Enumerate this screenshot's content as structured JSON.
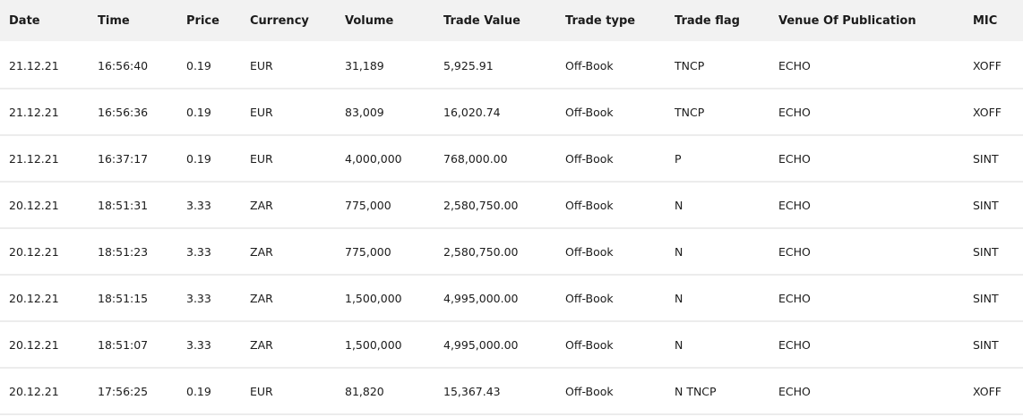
{
  "table": {
    "headers": {
      "date": "Date",
      "time": "Time",
      "price": "Price",
      "currency": "Currency",
      "volume": "Volume",
      "trade_value": "Trade Value",
      "trade_type": "Trade type",
      "trade_flag": "Trade flag",
      "venue": "Venue Of Publication",
      "mic": "MIC"
    },
    "rows": [
      {
        "date": "21.12.21",
        "time": "16:56:40",
        "price": "0.19",
        "currency": "EUR",
        "volume": "31,189",
        "trade_value": "5,925.91",
        "trade_type": "Off-Book",
        "trade_flag": "TNCP",
        "venue": "ECHO",
        "mic": "XOFF"
      },
      {
        "date": "21.12.21",
        "time": "16:56:36",
        "price": "0.19",
        "currency": "EUR",
        "volume": "83,009",
        "trade_value": "16,020.74",
        "trade_type": "Off-Book",
        "trade_flag": "TNCP",
        "venue": "ECHO",
        "mic": "XOFF"
      },
      {
        "date": "21.12.21",
        "time": "16:37:17",
        "price": "0.19",
        "currency": "EUR",
        "volume": "4,000,000",
        "trade_value": "768,000.00",
        "trade_type": "Off-Book",
        "trade_flag": "P",
        "venue": "ECHO",
        "mic": "SINT"
      },
      {
        "date": "20.12.21",
        "time": "18:51:31",
        "price": "3.33",
        "currency": "ZAR",
        "volume": "775,000",
        "trade_value": "2,580,750.00",
        "trade_type": "Off-Book",
        "trade_flag": "N",
        "venue": "ECHO",
        "mic": "SINT"
      },
      {
        "date": "20.12.21",
        "time": "18:51:23",
        "price": "3.33",
        "currency": "ZAR",
        "volume": "775,000",
        "trade_value": "2,580,750.00",
        "trade_type": "Off-Book",
        "trade_flag": "N",
        "venue": "ECHO",
        "mic": "SINT"
      },
      {
        "date": "20.12.21",
        "time": "18:51:15",
        "price": "3.33",
        "currency": "ZAR",
        "volume": "1,500,000",
        "trade_value": "4,995,000.00",
        "trade_type": "Off-Book",
        "trade_flag": "N",
        "venue": "ECHO",
        "mic": "SINT"
      },
      {
        "date": "20.12.21",
        "time": "18:51:07",
        "price": "3.33",
        "currency": "ZAR",
        "volume": "1,500,000",
        "trade_value": "4,995,000.00",
        "trade_type": "Off-Book",
        "trade_flag": "N",
        "venue": "ECHO",
        "mic": "SINT"
      },
      {
        "date": "20.12.21",
        "time": "17:56:25",
        "price": "0.19",
        "currency": "EUR",
        "volume": "81,820",
        "trade_value": "15,367.43",
        "trade_type": "Off-Book",
        "trade_flag": "N TNCP",
        "venue": "ECHO",
        "mic": "XOFF"
      }
    ]
  }
}
